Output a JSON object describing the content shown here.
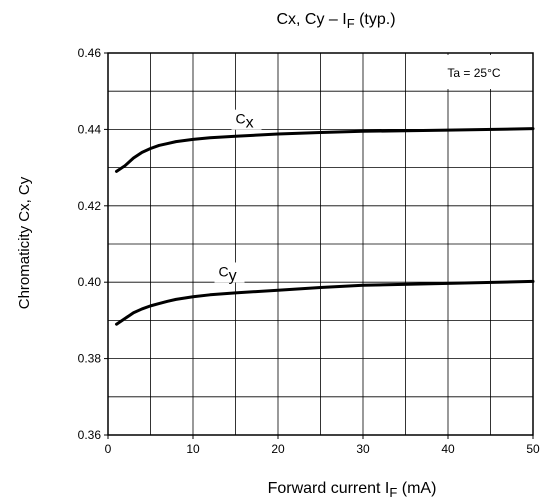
{
  "chart_data": {
    "type": "line",
    "title": {
      "main": "Cx, Cy – I",
      "sub": "F",
      "tail": " (typ.)"
    },
    "xlabel": {
      "main": "Forward current   I",
      "sub": "F",
      "tail": "   (mA)"
    },
    "ylabel": "Chromaticity Cx, Cy",
    "annotation": "Ta = 25°C",
    "xlim": [
      0,
      50
    ],
    "ylim": [
      0.36,
      0.46
    ],
    "x_ticks": [
      "0",
      "10",
      "20",
      "30",
      "40",
      "50"
    ],
    "y_ticks": [
      "0.36",
      "0.38",
      "0.40",
      "0.42",
      "0.44",
      "0.46"
    ],
    "grid": true,
    "series": [
      {
        "name": "Cx",
        "label_main": "C",
        "label_sub": "x",
        "label_at": [
          15,
          0.4415
        ],
        "x": [
          1,
          2,
          3,
          4,
          5,
          6,
          7,
          8,
          10,
          12,
          15,
          20,
          25,
          30,
          40,
          50
        ],
        "y": [
          0.429,
          0.4305,
          0.4325,
          0.434,
          0.435,
          0.4358,
          0.4363,
          0.4368,
          0.4374,
          0.4378,
          0.4382,
          0.4388,
          0.4392,
          0.4395,
          0.4398,
          0.4402
        ]
      },
      {
        "name": "Cy",
        "label_main": "C",
        "label_sub": "y",
        "label_at": [
          13,
          0.4015
        ],
        "x": [
          1,
          2,
          3,
          4,
          5,
          6,
          7,
          8,
          10,
          12,
          15,
          20,
          25,
          30,
          40,
          50
        ],
        "y": [
          0.389,
          0.3905,
          0.392,
          0.393,
          0.3938,
          0.3944,
          0.395,
          0.3955,
          0.3962,
          0.3967,
          0.3972,
          0.3979,
          0.3986,
          0.3992,
          0.3997,
          0.4002
        ]
      }
    ]
  }
}
